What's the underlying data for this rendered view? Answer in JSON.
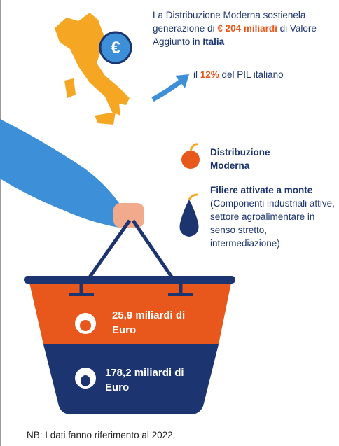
{
  "coin": "€",
  "header": {
    "intro": "La Distribuzione Moderna sostienela generazione di ",
    "amount": "€ 204 miliardi",
    "middle": " di Valore Aggiunto in ",
    "country": "Italia"
  },
  "pil": {
    "prefix": "il ",
    "value": "12%",
    "suffix": " del PIL italiano"
  },
  "legend": [
    {
      "label": "Distribuzione Moderna"
    },
    {
      "label": "Filiere attivate a monte",
      "detail": " (Componenti industriali attive, settore agroalimentare in senso stretto, intermediazione)"
    }
  ],
  "basket": [
    {
      "text": "25,9 miliardi di Euro"
    },
    {
      "text": "178,2 miliardi di Euro"
    }
  ],
  "note": "NB: I dati fanno riferimento al 2022."
}
